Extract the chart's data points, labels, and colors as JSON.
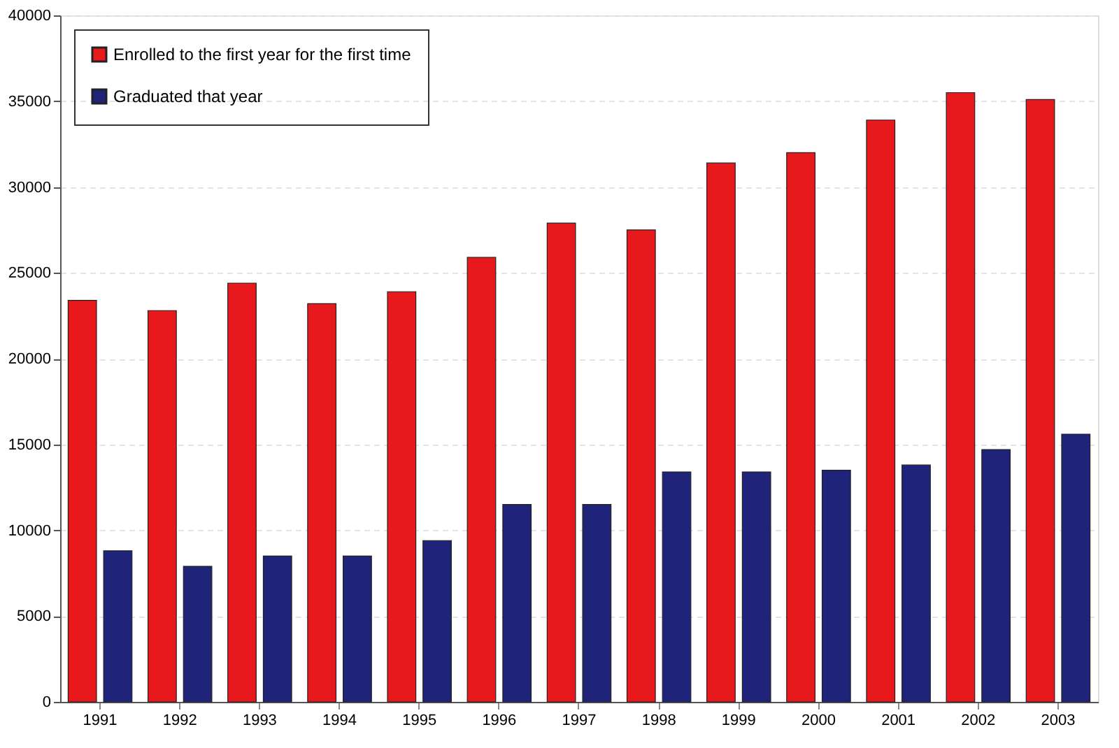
{
  "chart_data": {
    "type": "bar",
    "categories": [
      "1991",
      "1992",
      "1993",
      "1994",
      "1995",
      "1996",
      "1997",
      "1998",
      "1999",
      "2000",
      "2001",
      "2002",
      "2003"
    ],
    "series": [
      {
        "name": "Enrolled to the first year for the first time",
        "color": "#e8191d",
        "values": [
          23400,
          22800,
          24400,
          23200,
          23900,
          25900,
          27900,
          27500,
          31400,
          32000,
          33900,
          35500,
          35100
        ]
      },
      {
        "name": "Graduated that year",
        "color": "#1f237a",
        "values": [
          8800,
          7900,
          8500,
          8500,
          9400,
          11500,
          11500,
          13400,
          13400,
          13500,
          13800,
          14700,
          15600
        ]
      }
    ],
    "ylim": [
      0,
      40000
    ],
    "yticks": [
      0,
      5000,
      10000,
      15000,
      20000,
      25000,
      30000,
      35000,
      40000
    ],
    "grid": "y",
    "legend": "top left"
  }
}
